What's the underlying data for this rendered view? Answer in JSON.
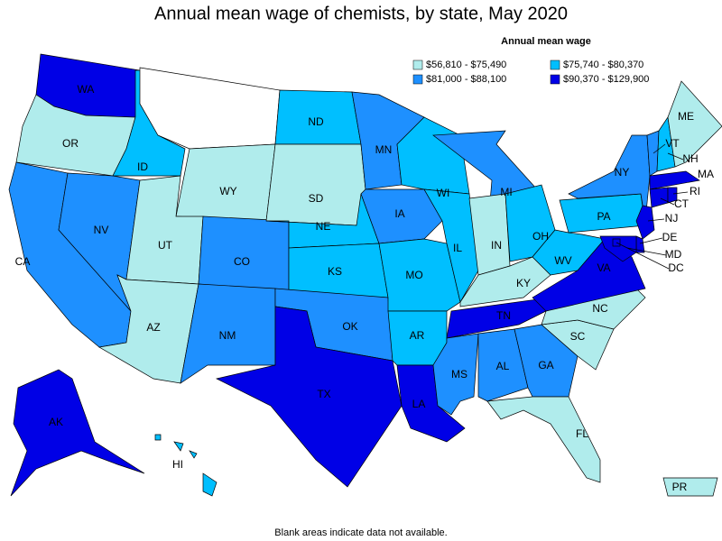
{
  "title": "Annual mean wage of chemists, by state, May 2020",
  "legend": {
    "title": "Annual mean wage",
    "items": [
      {
        "label": "$56,810 - $75,490",
        "color": "#b0ecec"
      },
      {
        "label": "$75,740 - $80,370",
        "color": "#00bfff"
      },
      {
        "label": "$81,000 - $88,100",
        "color": "#1e90ff"
      },
      {
        "label": "$90,370 - $129,900",
        "color": "#0000e6"
      }
    ]
  },
  "states": [
    {
      "label": "WA",
      "class": 3
    },
    {
      "label": "OR",
      "class": 0
    },
    {
      "label": "CA",
      "class": 2
    },
    {
      "label": "NV",
      "class": 2
    },
    {
      "label": "ID",
      "class": 1
    },
    {
      "label": null,
      "class": null
    },
    {
      "label": "WY",
      "class": 0
    },
    {
      "label": "UT",
      "class": 0
    },
    {
      "label": "AZ",
      "class": 0
    },
    {
      "label": "CO",
      "class": 2
    },
    {
      "label": "NM",
      "class": 2
    },
    {
      "label": "ND",
      "class": 1
    },
    {
      "label": "SD",
      "class": 0
    },
    {
      "label": "NE",
      "class": 1
    },
    {
      "label": "KS",
      "class": 1
    },
    {
      "label": "OK",
      "class": 2
    },
    {
      "label": "TX",
      "class": 3
    },
    {
      "label": "MN",
      "class": 2
    },
    {
      "label": "IA",
      "class": 2
    },
    {
      "label": "MO",
      "class": 1
    },
    {
      "label": "AR",
      "class": 1
    },
    {
      "label": "LA",
      "class": 3
    },
    {
      "label": "WI",
      "class": 1
    },
    {
      "label": "IL",
      "class": 1
    },
    {
      "label": "MI",
      "class": 2
    },
    {
      "label": "IN",
      "class": 0
    },
    {
      "label": "OH",
      "class": 1
    },
    {
      "label": "KY",
      "class": 0
    },
    {
      "label": "TN",
      "class": 3
    },
    {
      "label": "MS",
      "class": 2
    },
    {
      "label": "AL",
      "class": 2
    },
    {
      "label": "GA",
      "class": 2
    },
    {
      "label": "FL",
      "class": 0
    },
    {
      "label": "SC",
      "class": 0
    },
    {
      "label": "NC",
      "class": 0
    },
    {
      "label": "VA",
      "class": 3
    },
    {
      "label": "WV",
      "class": 1
    },
    {
      "label": "PA",
      "class": 1
    },
    {
      "label": "NY",
      "class": 2
    },
    {
      "label": "VT",
      "class": 2
    },
    {
      "label": "NH",
      "class": 1
    },
    {
      "label": "ME",
      "class": 0
    },
    {
      "label": "MA",
      "class": 3
    },
    {
      "label": "CT",
      "class": 3
    },
    {
      "label": "RI",
      "class": 3
    },
    {
      "label": "NJ",
      "class": 3
    },
    {
      "label": "DE",
      "class": 3
    },
    {
      "label": "MD",
      "class": 3
    },
    {
      "label": "DC",
      "class": 3
    },
    {
      "label": "AK",
      "class": 3
    },
    {
      "label": "HI",
      "class": 1
    },
    {
      "label": "PR",
      "class": 0
    }
  ],
  "footnote": "Blank areas indicate data not available."
}
